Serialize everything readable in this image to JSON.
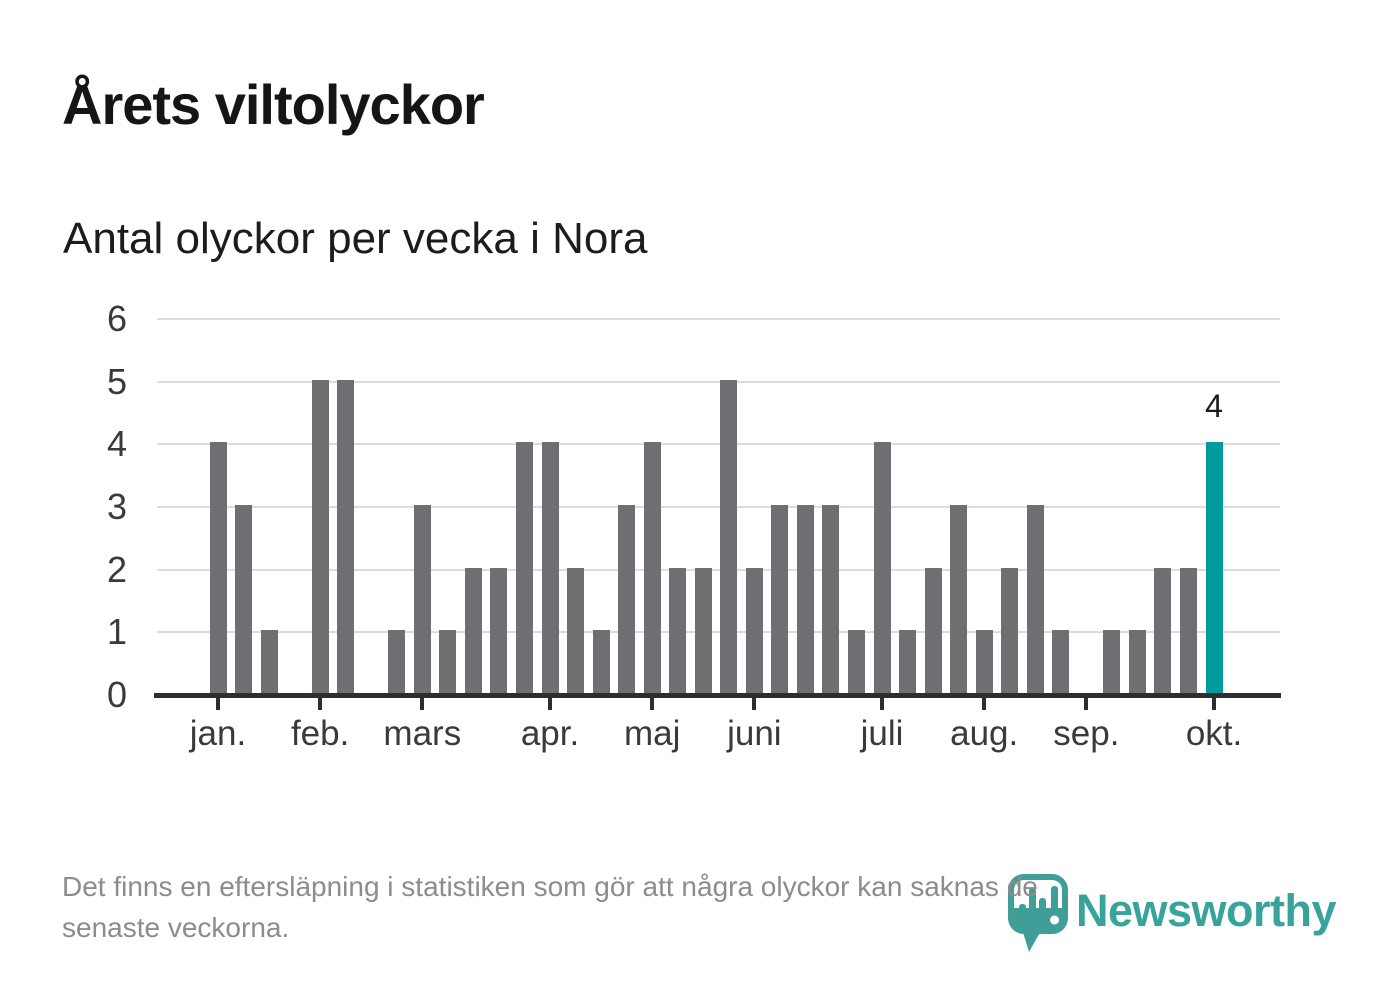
{
  "header": {
    "title": "Årets viltolyckor",
    "subtitle": "Antal olyckor per vecka i Nora"
  },
  "chart_data": {
    "type": "bar",
    "title": "Årets viltolyckor",
    "subtitle": "Antal olyckor per vecka i Nora",
    "x_unit": "week",
    "values": [
      4,
      3,
      1,
      0,
      5,
      5,
      0,
      1,
      3,
      1,
      2,
      2,
      4,
      4,
      2,
      1,
      3,
      4,
      2,
      2,
      5,
      2,
      3,
      3,
      3,
      1,
      4,
      1,
      2,
      3,
      1,
      2,
      3,
      1,
      0,
      1,
      1,
      2,
      2,
      4
    ],
    "highlight_index": 39,
    "highlight_value": 4,
    "highlight_value_label": "4",
    "y_ticks": [
      0,
      1,
      2,
      3,
      4,
      5,
      6
    ],
    "ylim": [
      0,
      6
    ],
    "grid": true,
    "legend_position": "none",
    "month_ticks": [
      {
        "label": "jan.",
        "slot": 0
      },
      {
        "label": "feb.",
        "slot": 4
      },
      {
        "label": "mars",
        "slot": 8
      },
      {
        "label": "apr.",
        "slot": 13
      },
      {
        "label": "maj",
        "slot": 17
      },
      {
        "label": "juni",
        "slot": 21
      },
      {
        "label": "juli",
        "slot": 26
      },
      {
        "label": "aug.",
        "slot": 30
      },
      {
        "label": "sep.",
        "slot": 34
      },
      {
        "label": "okt.",
        "slot": 39
      }
    ],
    "bar_color": "#6e6e73",
    "highlight_color": "#009c9c",
    "axis_color": "#2e2e2e",
    "gridline_color": "#dcdcdc"
  },
  "footer": {
    "note_lines": [
      "Det finns en eftersläpning i statistiken som gör att några olyckor kan saknas de",
      "senaste veckorna."
    ],
    "brand": "Newsworthy",
    "brand_color": "#38a39c"
  }
}
